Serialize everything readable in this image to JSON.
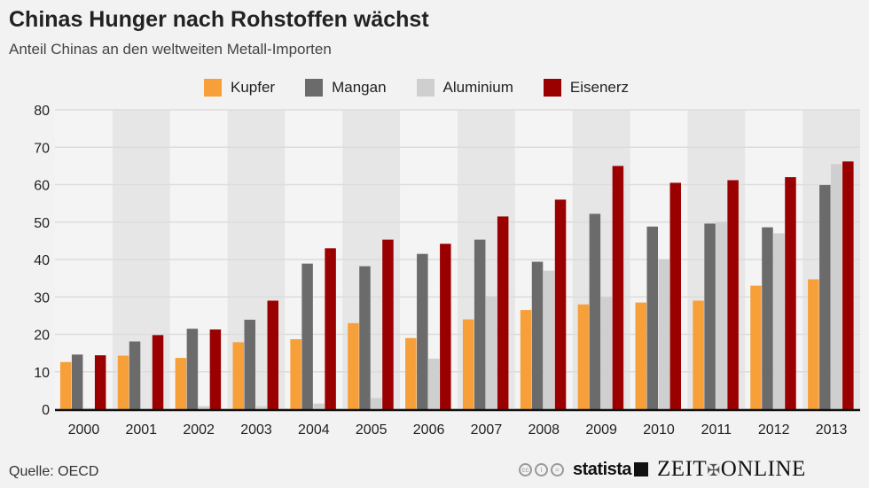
{
  "header": {
    "title": "Chinas Hunger nach Rohstoffen wächst",
    "subtitle": "Anteil Chinas an den weltweiten Metall-Importen"
  },
  "footer": {
    "source": "Quelle: OECD",
    "brand1": "statista",
    "brand2_left": "ZEIT",
    "brand2_right": "ONLINE",
    "license_icons": [
      "cc",
      "by",
      "nd"
    ]
  },
  "chart_data": {
    "type": "bar",
    "title": "Chinas Hunger nach Rohstoffen wächst",
    "subtitle": "Anteil Chinas an den weltweiten Metall-Importen",
    "xlabel": "",
    "ylabel": "",
    "ylim": [
      0,
      80
    ],
    "yticks": [
      0,
      10,
      20,
      30,
      40,
      50,
      60,
      70,
      80
    ],
    "grid": true,
    "legend": "top-center",
    "categories": [
      "2000",
      "2001",
      "2002",
      "2003",
      "2004",
      "2005",
      "2006",
      "2007",
      "2008",
      "2009",
      "2010",
      "2011",
      "2012",
      "2013"
    ],
    "series": [
      {
        "name": "Kupfer",
        "color": "#f7a03a",
        "values": [
          12.6,
          14.3,
          13.7,
          17.9,
          18.7,
          23,
          19,
          24,
          26.5,
          28,
          28.5,
          29,
          33,
          34.7
        ]
      },
      {
        "name": "Mangan",
        "color": "#6b6b6b",
        "values": [
          14.6,
          18.1,
          21.5,
          23.9,
          38.9,
          38.2,
          41.5,
          45.3,
          39.4,
          52.2,
          48.8,
          49.6,
          48.6,
          59.9
        ]
      },
      {
        "name": "Aluminium",
        "color": "#cfcfcf",
        "values": [
          0.3,
          0.1,
          0.8,
          0.8,
          1.5,
          3,
          13.5,
          30.2,
          37,
          30,
          40,
          50,
          47,
          65.5
        ]
      },
      {
        "name": "Eisenerz",
        "color": "#9b0000",
        "values": [
          14.4,
          19.8,
          21.3,
          29,
          43,
          45.3,
          44.2,
          51.5,
          56,
          65,
          60.5,
          61.2,
          62,
          66.2
        ]
      }
    ]
  }
}
